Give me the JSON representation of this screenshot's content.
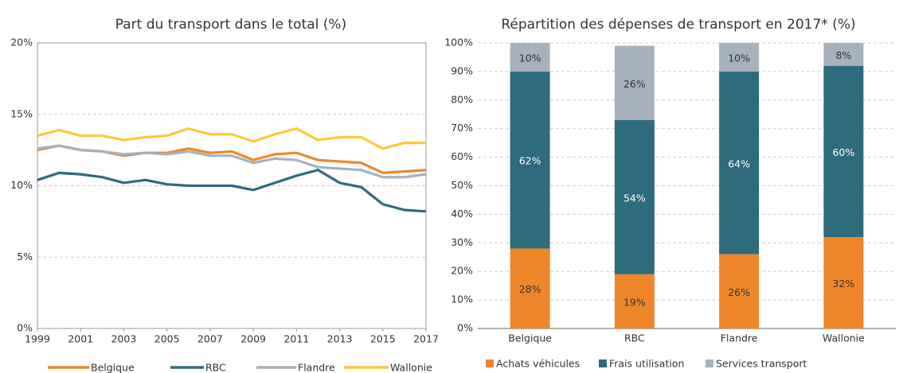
{
  "chart_data": [
    {
      "type": "line",
      "title": "Part du transport dans le total (%)",
      "x": [
        1999,
        2000,
        2001,
        2002,
        2003,
        2004,
        2005,
        2006,
        2007,
        2008,
        2009,
        2010,
        2011,
        2012,
        2013,
        2014,
        2015,
        2016,
        2017
      ],
      "xlim": [
        1999,
        2017
      ],
      "xticks": [
        1999,
        2001,
        2003,
        2005,
        2007,
        2009,
        2011,
        2013,
        2015,
        2017
      ],
      "ylim": [
        0,
        20
      ],
      "yticks": [
        {
          "value": 0,
          "label": "0%"
        },
        {
          "value": 5,
          "label": "5%"
        },
        {
          "value": 10,
          "label": "10%"
        },
        {
          "value": 15,
          "label": "15%"
        },
        {
          "value": 20,
          "label": "20%"
        }
      ],
      "grid": true,
      "legend": "bottom",
      "series": [
        {
          "name": "Belgique",
          "color": "#f0862a",
          "values": [
            12.5,
            12.8,
            12.5,
            12.4,
            12.1,
            12.3,
            12.3,
            12.6,
            12.3,
            12.4,
            11.8,
            12.2,
            12.3,
            11.8,
            11.7,
            11.6,
            10.9,
            11.0,
            11.1
          ]
        },
        {
          "name": "RBC",
          "color": "#2e6b7c",
          "values": [
            10.4,
            10.9,
            10.8,
            10.6,
            10.2,
            10.4,
            10.1,
            10.0,
            10.0,
            10.0,
            9.7,
            10.2,
            10.7,
            11.1,
            10.2,
            9.9,
            8.7,
            8.3,
            8.2
          ]
        },
        {
          "name": "Flandre",
          "color": "#a6b2bd",
          "values": [
            12.6,
            12.8,
            12.5,
            12.4,
            12.2,
            12.3,
            12.2,
            12.4,
            12.1,
            12.1,
            11.6,
            11.9,
            11.8,
            11.3,
            11.2,
            11.1,
            10.6,
            10.6,
            10.8
          ]
        },
        {
          "name": "Wallonie",
          "color": "#fbc93a",
          "values": [
            13.5,
            13.9,
            13.5,
            13.5,
            13.2,
            13.4,
            13.5,
            14.0,
            13.6,
            13.6,
            13.1,
            13.6,
            14.0,
            13.2,
            13.4,
            13.4,
            12.6,
            13.0,
            13.0
          ]
        }
      ]
    },
    {
      "type": "stacked_bar",
      "title": "Répartition des dépenses de transport en 2017* (%)",
      "categories": [
        "Belgique",
        "RBC",
        "Flandre",
        "Wallonie"
      ],
      "ylim": [
        0,
        100
      ],
      "yticks": [
        {
          "value": 0,
          "label": "0%"
        },
        {
          "value": 10,
          "label": "10%"
        },
        {
          "value": 20,
          "label": "20%"
        },
        {
          "value": 30,
          "label": "30%"
        },
        {
          "value": 40,
          "label": "40%"
        },
        {
          "value": 50,
          "label": "50%"
        },
        {
          "value": 60,
          "label": "60%"
        },
        {
          "value": 70,
          "label": "70%"
        },
        {
          "value": 80,
          "label": "80%"
        },
        {
          "value": 90,
          "label": "90%"
        },
        {
          "value": 100,
          "label": "100%"
        }
      ],
      "grid": true,
      "legend": "bottom",
      "series": [
        {
          "name": "Achats véhicules",
          "color": "#f0862a",
          "values": [
            28,
            19,
            26,
            32
          ],
          "value_labels": [
            "28%",
            "19%",
            "26%",
            "32%"
          ]
        },
        {
          "name": "Frais utilisation",
          "color": "#2e6b7c",
          "values": [
            62,
            54,
            64,
            60
          ],
          "value_labels": [
            "62%",
            "54%",
            "64%",
            "60%"
          ]
        },
        {
          "name": "Services transport",
          "color": "#a6b2bd",
          "values": [
            10,
            26,
            10,
            8
          ],
          "value_labels": [
            "10%",
            "26%",
            "10%",
            "8%"
          ]
        }
      ]
    }
  ]
}
